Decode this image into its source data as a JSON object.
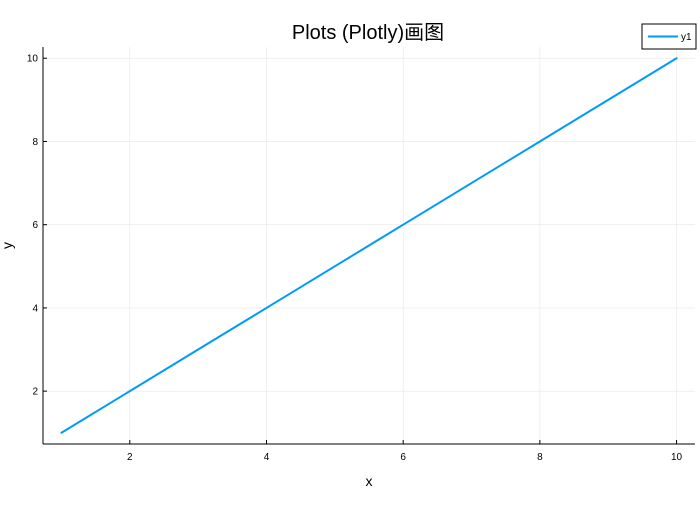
{
  "chart_data": {
    "type": "line",
    "title": "Plots (Plotly)画图",
    "xlabel": "x",
    "ylabel": "y",
    "x": [
      1,
      2,
      3,
      4,
      5,
      6,
      7,
      8,
      9,
      10
    ],
    "series": [
      {
        "name": "y1",
        "values": [
          1,
          2,
          3,
          4,
          5,
          6,
          7,
          8,
          9,
          10
        ],
        "color": "#009af9"
      }
    ],
    "xlim": [
      0.73,
      10.27
    ],
    "ylim": [
      0.73,
      10.27
    ],
    "xticks": [
      2,
      4,
      6,
      8,
      10
    ],
    "yticks": [
      2,
      4,
      6,
      8,
      10
    ],
    "grid": true,
    "legend_position": "top-right"
  }
}
